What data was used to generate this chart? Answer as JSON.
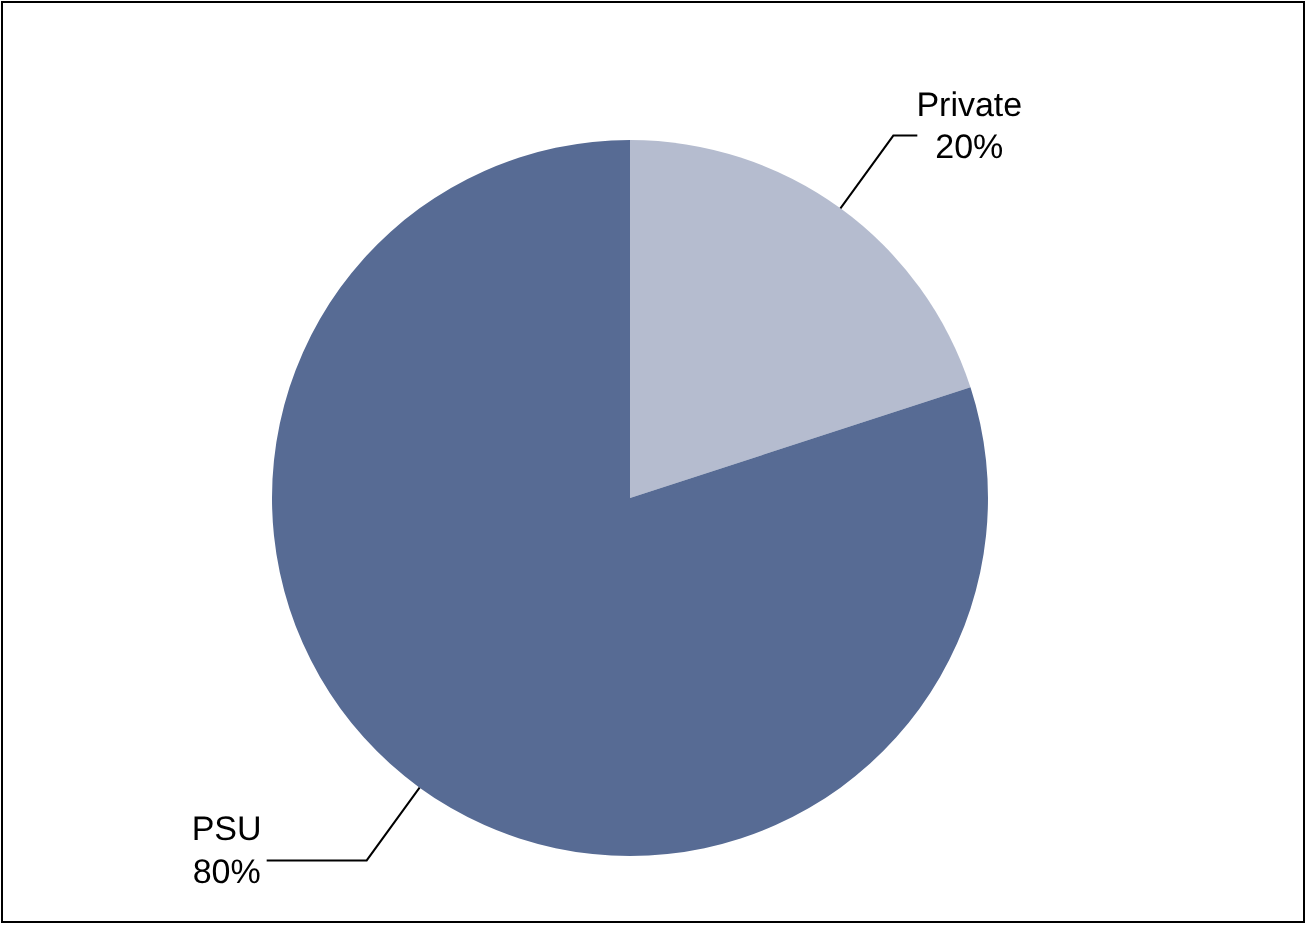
{
  "chart_data": {
    "type": "pie",
    "categories": [
      "Private",
      "PSU"
    ],
    "values": [
      20,
      80
    ],
    "colors": [
      "#b5bccf",
      "#576b94"
    ],
    "value_labels": [
      "20%",
      "80%"
    ]
  }
}
